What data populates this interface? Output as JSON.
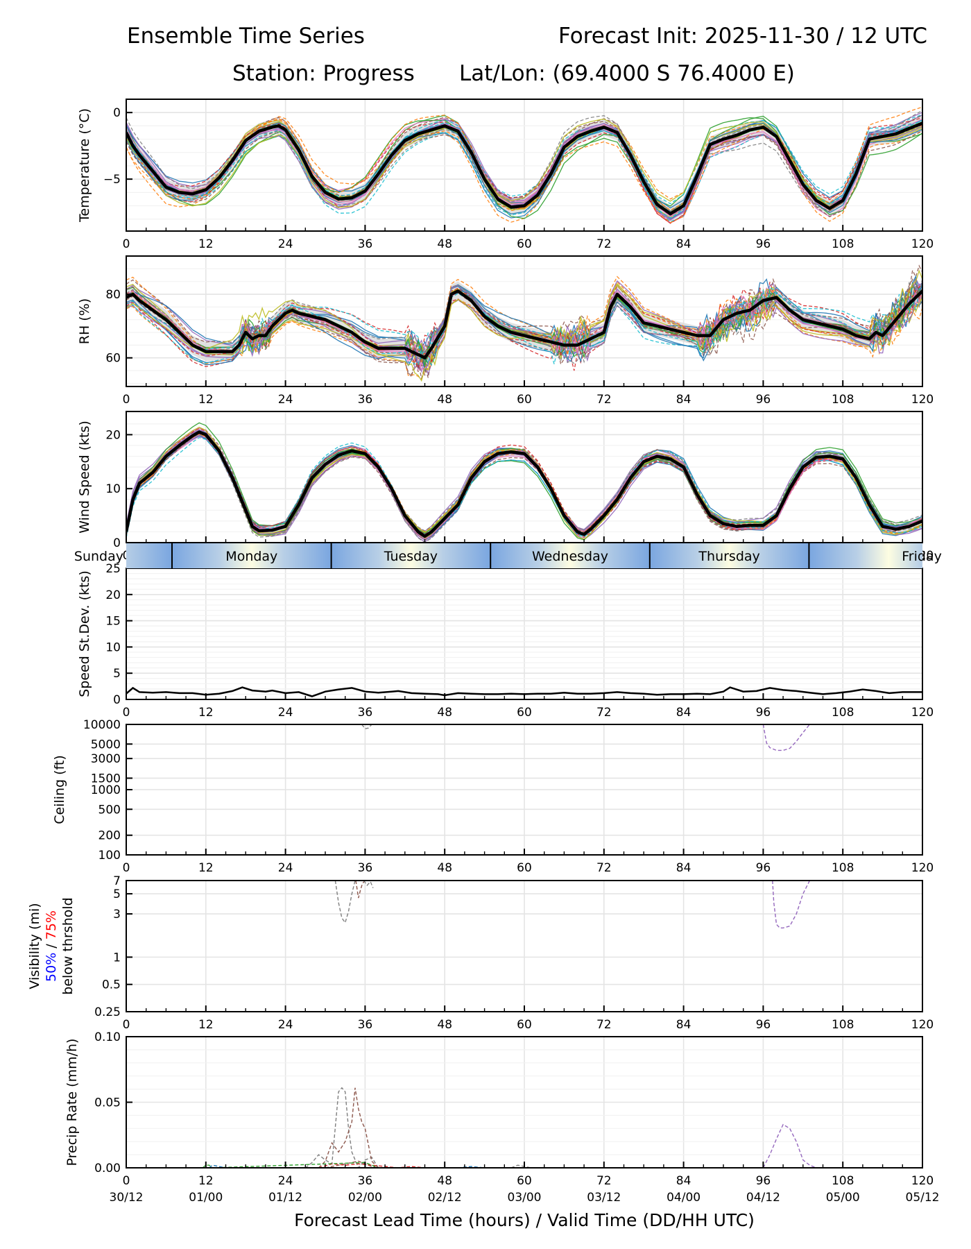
{
  "header": {
    "title_left": "Ensemble Time Series",
    "title_right": "Forecast Init: 2025-11-30 / 12 UTC",
    "station": "Station: Progress",
    "latlon": "Lat/Lon: (69.4000 S 76.4000 E)"
  },
  "x_axis": {
    "range": [
      0,
      120
    ],
    "ticks": [
      0,
      12,
      24,
      36,
      48,
      60,
      72,
      84,
      96,
      108,
      120
    ],
    "tick_labels": [
      "0",
      "12",
      "24",
      "36",
      "48",
      "60",
      "72",
      "84",
      "96",
      "108",
      "120"
    ],
    "valid_time_labels": [
      "30/12",
      "01/00",
      "01/12",
      "02/00",
      "02/12",
      "03/00",
      "03/12",
      "04/00",
      "04/12",
      "05/00",
      "05/12"
    ],
    "xlabel": "Forecast Lead Time (hours) / Valid Time (DD/HH UTC)"
  },
  "day_band": {
    "days": [
      {
        "name": "Sunday",
        "start": 0,
        "end": 6.9
      },
      {
        "name": "Monday",
        "start": 6.9,
        "end": 30.9
      },
      {
        "name": "Tuesday",
        "start": 30.9,
        "end": 54.9
      },
      {
        "name": "Wednesday",
        "start": 54.9,
        "end": 78.9
      },
      {
        "name": "Thursday",
        "start": 78.9,
        "end": 102.9
      },
      {
        "name": "Friday",
        "start": 102.9,
        "end": 120
      }
    ],
    "night_color": "#7aa6e0",
    "day_color": "#fdfde2"
  },
  "member_colors": [
    "#1f77b4",
    "#ff7f0e",
    "#2ca02c",
    "#d62728",
    "#9467bd",
    "#8c564b",
    "#e377c2",
    "#7f7f7f",
    "#bcbd22",
    "#17becf"
  ],
  "chart_data": [
    {
      "type": "line",
      "id": "temperature",
      "ylabel": "Temperature (°C)",
      "ylim": [
        -8.9,
        1.0
      ],
      "yticks": [
        0,
        -5
      ],
      "grid": true,
      "mean": {
        "x": [
          0,
          1,
          2,
          4,
          6,
          8,
          10,
          12,
          14,
          16,
          18,
          20,
          22,
          23,
          24,
          26,
          28,
          30,
          32,
          34,
          36,
          38,
          40,
          42,
          44,
          46,
          48,
          50,
          52,
          54,
          56,
          58,
          60,
          62,
          64,
          66,
          68,
          70,
          72,
          74,
          76,
          78,
          80,
          82,
          84,
          86,
          88,
          90,
          92,
          94,
          96,
          98,
          100,
          102,
          104,
          106,
          108,
          110,
          112,
          114,
          116,
          118,
          120
        ],
        "y": [
          -1.5,
          -2.5,
          -3.2,
          -4.4,
          -5.6,
          -6.0,
          -6.1,
          -5.8,
          -4.9,
          -3.6,
          -2.1,
          -1.4,
          -1.1,
          -1.0,
          -1.3,
          -2.8,
          -4.8,
          -6.0,
          -6.5,
          -6.4,
          -5.9,
          -4.6,
          -3.2,
          -2.1,
          -1.6,
          -1.3,
          -1.0,
          -1.4,
          -3.0,
          -5.0,
          -6.5,
          -7.1,
          -7.0,
          -6.2,
          -4.6,
          -2.6,
          -1.8,
          -1.4,
          -1.1,
          -1.5,
          -3.2,
          -5.2,
          -6.9,
          -7.6,
          -7.0,
          -4.8,
          -2.4,
          -2.0,
          -1.7,
          -1.3,
          -1.1,
          -1.8,
          -3.6,
          -5.4,
          -6.6,
          -7.2,
          -6.6,
          -4.6,
          -2.0,
          -1.8,
          -1.6,
          -1.2,
          -0.8
        ]
      },
      "spread": 0.6
    },
    {
      "type": "line",
      "id": "relative_humidity",
      "ylabel": "RH (%)",
      "ylim": [
        51,
        92
      ],
      "yticks": [
        80,
        60
      ],
      "grid": true,
      "mean": {
        "x": [
          0,
          1,
          2,
          4,
          6,
          8,
          10,
          12,
          14,
          16,
          17,
          18,
          19,
          20,
          21,
          22,
          24,
          25,
          26,
          28,
          30,
          32,
          34,
          36,
          38,
          40,
          42,
          44,
          45,
          46,
          48,
          49,
          50,
          52,
          54,
          56,
          58,
          60,
          62,
          64,
          66,
          68,
          70,
          72,
          73,
          74,
          76,
          78,
          80,
          82,
          84,
          86,
          88,
          90,
          92,
          94,
          96,
          98,
          100,
          102,
          104,
          106,
          108,
          110,
          112,
          113,
          114,
          116,
          118,
          120
        ],
        "y": [
          79,
          80,
          78,
          75,
          72,
          68,
          64,
          62,
          62,
          62,
          64,
          68,
          66,
          67,
          67,
          70,
          74,
          75,
          74,
          73,
          72,
          70,
          68,
          65,
          63,
          63,
          63,
          61,
          60,
          63,
          70,
          80,
          81,
          78,
          73,
          70,
          68,
          67,
          66,
          65,
          64,
          64,
          66,
          68,
          76,
          80,
          76,
          71,
          70,
          69,
          68,
          67,
          67,
          72,
          74,
          75,
          78,
          79,
          75,
          72,
          71,
          70,
          69,
          67,
          66,
          68,
          67,
          72,
          77,
          81
        ]
      },
      "spread": 3.0
    },
    {
      "type": "line",
      "id": "wind_speed",
      "ylabel": "Wind Speed (kts)",
      "ylim": [
        0,
        24.3
      ],
      "yticks": [
        20,
        10,
        0
      ],
      "grid": true,
      "mean": {
        "x": [
          0,
          1,
          2,
          4,
          6,
          8,
          10,
          11,
          12,
          14,
          16,
          18,
          19,
          20,
          22,
          24,
          26,
          28,
          30,
          32,
          34,
          36,
          38,
          40,
          42,
          44,
          45,
          46,
          48,
          50,
          52,
          54,
          56,
          58,
          60,
          62,
          64,
          66,
          68,
          69,
          70,
          72,
          74,
          76,
          78,
          80,
          82,
          84,
          86,
          88,
          90,
          92,
          94,
          96,
          98,
          100,
          102,
          104,
          106,
          108,
          110,
          112,
          114,
          116,
          118,
          120
        ],
        "y": [
          2,
          8,
          11,
          13,
          16,
          18,
          19.8,
          20.5,
          20,
          17,
          12,
          6,
          3,
          2.2,
          2.3,
          3,
          7,
          12,
          14.5,
          16.2,
          17,
          16.5,
          14,
          10,
          5,
          2,
          1.2,
          2,
          4.5,
          7,
          12,
          15,
          16.5,
          16.8,
          16.5,
          14,
          10,
          5,
          2,
          1.5,
          2.5,
          5,
          8,
          12,
          15,
          16,
          15.5,
          14,
          9,
          5,
          3.5,
          3,
          3.2,
          3.2,
          5,
          10,
          14,
          15.8,
          16,
          15.5,
          12,
          7,
          3,
          2.5,
          3,
          4
        ]
      },
      "spread": 0.8
    },
    {
      "type": "line",
      "id": "speed_stddev",
      "ylabel": "Speed St.Dev. (kts)",
      "ylim": [
        0,
        25
      ],
      "yticks": [
        25,
        20,
        15,
        10,
        5,
        0
      ],
      "grid": true,
      "series": {
        "x": [
          0,
          1,
          2,
          4,
          6,
          8,
          10,
          12,
          14,
          16,
          17.5,
          19,
          21,
          22,
          24,
          26,
          28,
          30,
          32,
          34,
          36,
          38,
          40,
          41,
          43,
          45,
          47,
          48,
          50,
          52,
          54,
          56,
          58,
          60,
          62,
          64,
          66,
          68,
          70,
          72,
          74,
          76,
          78,
          80,
          82,
          84,
          86,
          88,
          90,
          91,
          93,
          95,
          97,
          99,
          101,
          103,
          105,
          107,
          109,
          111,
          113,
          115,
          117,
          120
        ],
        "y": [
          1.1,
          2.2,
          1.4,
          1.3,
          1.4,
          1.2,
          1.2,
          0.9,
          1.1,
          1.6,
          2.3,
          1.7,
          1.5,
          1.7,
          1.2,
          1.4,
          0.6,
          1.5,
          1.9,
          2.2,
          1.5,
          1.3,
          1.5,
          1.6,
          1.2,
          1.1,
          1.0,
          0.8,
          1.2,
          1.1,
          1.0,
          1.0,
          1.1,
          1.0,
          1.1,
          1.1,
          1.3,
          1.1,
          1.1,
          1.2,
          1.4,
          1.2,
          1.1,
          0.9,
          1.0,
          1.0,
          1.1,
          1.0,
          1.5,
          2.3,
          1.5,
          1.6,
          2.2,
          1.8,
          1.6,
          1.3,
          1.0,
          1.2,
          1.5,
          1.9,
          1.6,
          1.2,
          1.4,
          1.4
        ]
      }
    },
    {
      "type": "line",
      "id": "ceiling",
      "ylabel": "Ceiling (ft)",
      "yscale": "log",
      "ylim": [
        100,
        10000
      ],
      "yticks": [
        10000,
        5000,
        3000,
        1500,
        1000,
        500,
        200,
        100
      ],
      "grid": true,
      "members": [
        {
          "color_index": 7,
          "x": [
            35.5,
            36,
            36.5,
            37
          ],
          "y": [
            10000,
            8600,
            8800,
            10000
          ]
        },
        {
          "color_index": 4,
          "x": [
            96,
            96.5,
            97,
            98,
            99,
            100,
            101,
            102,
            103
          ],
          "y": [
            10000,
            5200,
            4400,
            4000,
            4000,
            4300,
            5500,
            7500,
            10000
          ]
        }
      ]
    },
    {
      "type": "line",
      "id": "visibility",
      "ylabel_lines": [
        "Visibility (mi)",
        "50% / 75%",
        "below thrshold"
      ],
      "ylabel_threshold_50": "50%",
      "ylabel_threshold_75": "75%",
      "ylabel_threshold_50_color": "#0000ff",
      "ylabel_threshold_75_color": "#ff0000",
      "yscale": "log",
      "ylim": [
        0.25,
        7
      ],
      "yticks": [
        7,
        5,
        3,
        1,
        0.5,
        0.25
      ],
      "grid": true,
      "members": [
        {
          "color_index": 7,
          "x": [
            31.5,
            32,
            32.5,
            33,
            33.5,
            34,
            34.5
          ],
          "y": [
            7,
            4,
            2.7,
            2.4,
            3.2,
            5,
            7
          ]
        },
        {
          "color_index": 5,
          "x": [
            34.6,
            35,
            35.3,
            35.6,
            36
          ],
          "y": [
            7,
            4.5,
            5.5,
            6.5,
            7
          ]
        },
        {
          "color_index": 7,
          "x": [
            35.8,
            36.3,
            36.8,
            37.2
          ],
          "y": [
            7,
            6.2,
            6.8,
            5.8
          ]
        },
        {
          "color_index": 4,
          "x": [
            97.4,
            97.6,
            98,
            98.5,
            99,
            100,
            101,
            102,
            103
          ],
          "y": [
            7,
            4,
            2.3,
            2.1,
            2.1,
            2.2,
            3,
            5,
            7
          ]
        }
      ]
    },
    {
      "type": "line",
      "id": "precip_rate",
      "ylabel": "Precip Rate (mm/h)",
      "ylim": [
        0,
        0.1
      ],
      "yticks": [
        0.1,
        0.05,
        0.0
      ],
      "ytick_labels": [
        "0.10",
        "0.05",
        "0.00"
      ],
      "grid": true,
      "members": [
        {
          "color_index": 7,
          "x": [
            27,
            28,
            29,
            30,
            31,
            32,
            32.5,
            33,
            33.5,
            34,
            35,
            36,
            37,
            38
          ],
          "y": [
            0,
            0.004,
            0.01,
            0.006,
            0.003,
            0.058,
            0.061,
            0.058,
            0.03,
            0.012,
            0.0,
            0.006,
            0.008,
            0.0
          ]
        },
        {
          "color_index": 5,
          "x": [
            29,
            30,
            31,
            32,
            33,
            34,
            34.5,
            35,
            35.5,
            36,
            37,
            38
          ],
          "y": [
            0,
            0.005,
            0.019,
            0.012,
            0.02,
            0.035,
            0.061,
            0.045,
            0.035,
            0.03,
            0.005,
            0
          ]
        },
        {
          "color_index": 5,
          "x": [
            30,
            32,
            34,
            35,
            36,
            37,
            38
          ],
          "y": [
            0,
            0.002,
            0.004,
            0.005,
            0.003,
            0.001,
            0
          ]
        },
        {
          "color_index": 3,
          "x": [
            29,
            31,
            33,
            35,
            37,
            39,
            41,
            43,
            45
          ],
          "y": [
            0,
            0.003,
            0.002,
            0.003,
            0.002,
            0.001,
            0.0,
            0.001,
            0
          ]
        },
        {
          "color_index": 2,
          "x": [
            11.5,
            12,
            12.5,
            13,
            36,
            37,
            38
          ],
          "y": [
            0,
            0.002,
            0.002,
            0,
            0.004,
            0.002,
            0
          ]
        },
        {
          "color_index": 0,
          "x": [
            12.5,
            13,
            14,
            15,
            50,
            52,
            54
          ],
          "y": [
            0,
            0.002,
            0.001,
            0,
            0.0,
            0.001,
            0
          ]
        },
        {
          "color_index": 7,
          "x": [
            58,
            59,
            60,
            61
          ],
          "y": [
            0,
            0.002,
            0.001,
            0
          ]
        },
        {
          "color_index": 4,
          "x": [
            96,
            97,
            98,
            99,
            100,
            101,
            102,
            103,
            104
          ],
          "y": [
            0,
            0.01,
            0.022,
            0.033,
            0.03,
            0.02,
            0.006,
            0.002,
            0
          ]
        }
      ]
    }
  ]
}
